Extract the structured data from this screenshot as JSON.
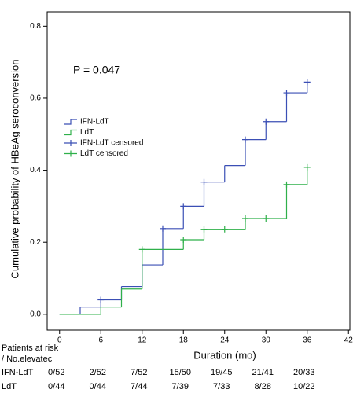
{
  "chart_data": {
    "type": "step",
    "annotation": "P = 0.047",
    "x_label": "Duration (mo)",
    "y_label": "Cumulative probability of HBeAg seroconversion",
    "xlim": [
      -1.8,
      42.2
    ],
    "ylim": [
      -0.044,
      0.84
    ],
    "xticks": [
      0,
      6,
      12,
      18,
      24,
      30,
      36,
      42
    ],
    "yticks": [
      {
        "value": 0,
        "label": "0.0"
      },
      0.2,
      0.4,
      0.6,
      0.8
    ],
    "series": [
      {
        "name": "IFN-LdT",
        "color": "#3b4fb5",
        "kind": "step",
        "x": [
          0,
          3,
          6,
          9,
          12,
          15,
          18,
          21,
          24,
          27,
          30,
          33,
          36
        ],
        "values": [
          0,
          0.02,
          0.04,
          0.077,
          0.137,
          0.238,
          0.3,
          0.367,
          0.413,
          0.485,
          0.535,
          0.615,
          0.645
        ]
      },
      {
        "name": "LdT",
        "color": "#2fb04a",
        "kind": "step",
        "x": [
          0,
          6,
          9,
          12,
          18,
          21,
          27,
          33,
          36
        ],
        "values": [
          0,
          0.02,
          0.07,
          0.18,
          0.207,
          0.236,
          0.266,
          0.36,
          0.408
        ]
      },
      {
        "name": "IFN-LdT censored",
        "color": "#3b4fb5",
        "kind": "censored",
        "x": [
          6,
          15,
          18,
          21,
          27,
          30,
          33,
          36
        ],
        "values": [
          0.04,
          0.238,
          0.3,
          0.367,
          0.485,
          0.535,
          0.615,
          0.645
        ]
      },
      {
        "name": "LdT censored",
        "color": "#2fb04a",
        "kind": "censored",
        "x": [
          12,
          18,
          21,
          24,
          27,
          30,
          33,
          36
        ],
        "values": [
          0.18,
          0.207,
          0.236,
          0.236,
          0.266,
          0.266,
          0.36,
          0.408
        ]
      }
    ],
    "risk_table": {
      "title": [
        "Patients at risk",
        "/ No.elevatec"
      ],
      "rows": [
        {
          "label": "IFN-LdT",
          "values": [
            "0/52",
            "2/52",
            "7/52",
            "15/50",
            "19/45",
            "21/41",
            "20/33"
          ]
        },
        {
          "label": "LdT",
          "values": [
            "0/44",
            "0/44",
            "7/44",
            "7/39",
            "7/33",
            "8/28",
            "10/22"
          ]
        }
      ]
    }
  }
}
